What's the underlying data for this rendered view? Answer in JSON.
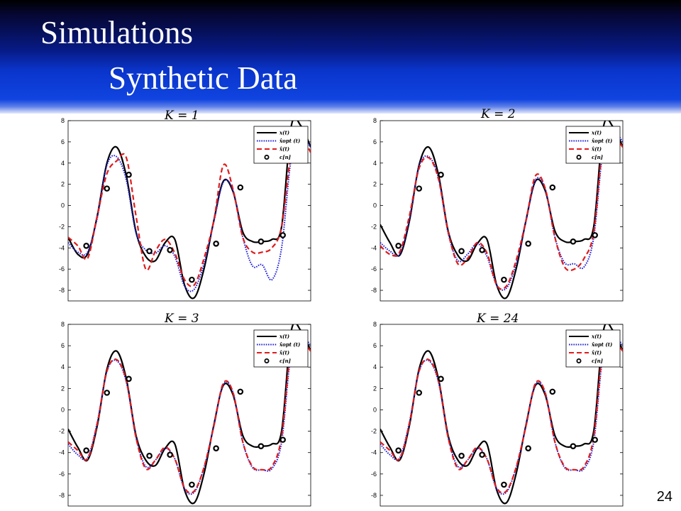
{
  "slide": {
    "title": "Simulations",
    "subtitle": "Synthetic Data",
    "page_number": "24"
  },
  "chart_data": [
    {
      "type": "line",
      "panel_title": "K = 1",
      "ylim": [
        -9,
        8
      ],
      "yticks": [
        "8",
        "6",
        "4",
        "2",
        "0",
        "-2",
        "-4",
        "-6",
        "-8"
      ],
      "grid": false,
      "legend_position": "top-right",
      "legend": [
        "x(t)",
        "x̂opt (t)",
        "x̂(t)",
        "c[n]"
      ],
      "series": [
        {
          "name": "x(t)",
          "color": "#000000",
          "style": "solid",
          "x": [
            0,
            4,
            8,
            12,
            16,
            20,
            24,
            28,
            32,
            36,
            40,
            44,
            48,
            52,
            56,
            60,
            64,
            68,
            72,
            76,
            80,
            84,
            88,
            92,
            96,
            100
          ],
          "values": [
            -3,
            -4.6,
            -4.6,
            -1,
            4,
            5.5,
            2.8,
            -2.5,
            -4.8,
            -5.2,
            -3.5,
            -3.2,
            -7.5,
            -8.7,
            -6,
            -1.5,
            2.3,
            1.3,
            -2.5,
            -3.4,
            -3.4,
            -3.2,
            -2,
            7.5,
            7.5,
            5.5
          ]
        },
        {
          "name": "x̂opt (t)",
          "color": "#1f1fd6",
          "style": "dotted",
          "x": [
            0,
            4,
            8,
            12,
            16,
            20,
            24,
            28,
            32,
            36,
            40,
            44,
            48,
            52,
            56,
            60,
            64,
            68,
            72,
            76,
            80,
            84,
            88,
            92,
            96,
            100
          ],
          "values": [
            -3.5,
            -4.4,
            -4.4,
            -1.2,
            3.8,
            4.6,
            2.4,
            -2.6,
            -4.2,
            -4.5,
            -3.8,
            -4.8,
            -7.6,
            -7.9,
            -5.5,
            -1.6,
            2.2,
            1.4,
            -3,
            -5.7,
            -5.6,
            -7,
            -4,
            4.5,
            6.5,
            5.5
          ]
        },
        {
          "name": "x̂(t)",
          "color": "#e01c1c",
          "style": "dashed",
          "x": [
            0,
            4,
            8,
            12,
            16,
            20,
            24,
            28,
            32,
            36,
            40,
            44,
            48,
            52,
            56,
            60,
            64,
            68,
            72,
            76,
            80,
            84,
            88,
            92,
            96,
            100
          ],
          "values": [
            -3,
            -3.8,
            -5,
            -1,
            3,
            4.2,
            4.5,
            -1,
            -6,
            -4.3,
            -3.2,
            -4.5,
            -7,
            -7.5,
            -5,
            -1.5,
            3.8,
            1.5,
            -3,
            -4.4,
            -4.4,
            -4,
            -2,
            5,
            6.5,
            5
          ]
        },
        {
          "name": "c[n]",
          "color": "#000000",
          "style": "markers",
          "x": [
            7.5,
            16,
            25,
            33.5,
            42,
            51,
            61,
            71,
            79.5,
            88.5
          ],
          "values": [
            -3.8,
            1.6,
            2.9,
            -4.3,
            -4.2,
            -7,
            -3.6,
            1.7,
            -3.4,
            -2.8
          ]
        }
      ]
    },
    {
      "type": "line",
      "panel_title": "K = 2",
      "ylim": [
        -9,
        8
      ],
      "yticks": [
        "8",
        "6",
        "4",
        "2",
        "0",
        "-2",
        "-4",
        "-6",
        "-8"
      ],
      "grid": false,
      "legend_position": "top-right",
      "legend": [
        "x(t)",
        "x̂opt (t)",
        "x̂(t)",
        "c[n]"
      ],
      "series": [
        {
          "name": "x(t)",
          "color": "#000000",
          "style": "solid",
          "x": [
            0,
            4,
            8,
            12,
            16,
            20,
            24,
            28,
            32,
            36,
            40,
            44,
            48,
            52,
            56,
            60,
            64,
            68,
            72,
            76,
            80,
            84,
            88,
            92,
            96,
            100
          ],
          "values": [
            -1.8,
            -3.5,
            -4.7,
            -1.5,
            3.8,
            5.5,
            2.9,
            -2.4,
            -4.7,
            -5.2,
            -3.6,
            -3.2,
            -7.5,
            -8.7,
            -6,
            -1.5,
            2.3,
            1.4,
            -2.4,
            -3.4,
            -3.4,
            -3.2,
            -2,
            7.4,
            7.4,
            5.5
          ]
        },
        {
          "name": "x̂opt (t)",
          "color": "#1f1fd6",
          "style": "dotted",
          "x": [
            0,
            4,
            8,
            12,
            16,
            20,
            24,
            28,
            32,
            36,
            40,
            44,
            48,
            52,
            56,
            60,
            64,
            68,
            72,
            76,
            80,
            84,
            88,
            92,
            96,
            100
          ],
          "values": [
            -3.5,
            -4.3,
            -4.6,
            -1.3,
            3.7,
            4.6,
            2.6,
            -2.6,
            -5.2,
            -4.6,
            -3.6,
            -4.8,
            -7.5,
            -7.8,
            -5.5,
            -1.6,
            2.4,
            1.6,
            -3,
            -5.4,
            -5.5,
            -5.8,
            -3,
            5.5,
            7,
            6
          ]
        },
        {
          "name": "x̂(t)",
          "color": "#e01c1c",
          "style": "dashed",
          "x": [
            0,
            4,
            8,
            12,
            16,
            20,
            24,
            28,
            32,
            36,
            40,
            44,
            48,
            52,
            56,
            60,
            64,
            68,
            72,
            76,
            80,
            84,
            88,
            92,
            96,
            100
          ],
          "values": [
            -3.8,
            -4.6,
            -4.4,
            -1,
            3.5,
            4.5,
            2.5,
            -2.5,
            -5.5,
            -5,
            -3.5,
            -4.5,
            -7.5,
            -7.6,
            -5.2,
            -1.5,
            2.8,
            1.6,
            -3,
            -5.8,
            -6,
            -5,
            -2.5,
            6,
            6.5,
            5.5
          ]
        },
        {
          "name": "c[n]",
          "color": "#000000",
          "style": "markers",
          "x": [
            7.5,
            16,
            25,
            33.5,
            42,
            51,
            61,
            71,
            79.5,
            88.5
          ],
          "values": [
            -3.8,
            1.6,
            2.9,
            -4.3,
            -4.2,
            -7,
            -3.6,
            1.7,
            -3.4,
            -2.8
          ]
        }
      ]
    },
    {
      "type": "line",
      "panel_title": "K = 3",
      "ylim": [
        -9,
        8
      ],
      "yticks": [
        "8",
        "6",
        "4",
        "2",
        "0",
        "-2",
        "-4",
        "-6",
        "-8"
      ],
      "grid": false,
      "legend_position": "top-right",
      "legend": [
        "x(t)",
        "x̂opt (t)",
        "x̂(t)",
        "c[n]"
      ],
      "series": [
        {
          "name": "x(t)",
          "color": "#000000",
          "style": "solid",
          "x": [
            0,
            4,
            8,
            12,
            16,
            20,
            24,
            28,
            32,
            36,
            40,
            44,
            48,
            52,
            56,
            60,
            64,
            68,
            72,
            76,
            80,
            84,
            88,
            92,
            96,
            100
          ],
          "values": [
            -1.8,
            -3.5,
            -4.7,
            -1.5,
            3.8,
            5.5,
            2.9,
            -2.4,
            -4.7,
            -5.2,
            -3.6,
            -3.2,
            -7.5,
            -8.7,
            -6,
            -1.5,
            2.3,
            1.4,
            -2.4,
            -3.4,
            -3.4,
            -3.2,
            -2,
            7.4,
            7.4,
            5.5
          ]
        },
        {
          "name": "x̂opt (t)",
          "color": "#1f1fd6",
          "style": "dotted",
          "x": [
            0,
            4,
            8,
            12,
            16,
            20,
            24,
            28,
            32,
            36,
            40,
            44,
            48,
            52,
            56,
            60,
            64,
            68,
            72,
            76,
            80,
            84,
            88,
            92,
            96,
            100
          ],
          "values": [
            -3.2,
            -4.2,
            -4.5,
            -1.2,
            3.6,
            4.6,
            2.6,
            -2.6,
            -5.3,
            -4.7,
            -3.6,
            -4.6,
            -7.4,
            -7.7,
            -5.4,
            -1.6,
            2.4,
            1.6,
            -3,
            -5.4,
            -5.6,
            -5.5,
            -3,
            5.5,
            7,
            6
          ]
        },
        {
          "name": "x̂(t)",
          "color": "#e01c1c",
          "style": "dashed",
          "x": [
            0,
            4,
            8,
            12,
            16,
            20,
            24,
            28,
            32,
            36,
            40,
            44,
            48,
            52,
            56,
            60,
            64,
            68,
            72,
            76,
            80,
            84,
            88,
            92,
            96,
            100
          ],
          "values": [
            -3,
            -3.8,
            -4.6,
            -1.3,
            3.6,
            4.7,
            2.7,
            -2.6,
            -5.5,
            -4.7,
            -3.5,
            -4.6,
            -7.3,
            -7.6,
            -5.4,
            -1.6,
            2.5,
            1.6,
            -3,
            -5.3,
            -5.6,
            -5.3,
            -2.5,
            6,
            6.5,
            5.5
          ]
        },
        {
          "name": "c[n]",
          "color": "#000000",
          "style": "markers",
          "x": [
            7.5,
            16,
            25,
            33.5,
            42,
            51,
            61,
            71,
            79.5,
            88.5
          ],
          "values": [
            -3.8,
            1.6,
            2.9,
            -4.3,
            -4.2,
            -7,
            -3.6,
            1.7,
            -3.4,
            -2.8
          ]
        }
      ]
    },
    {
      "type": "line",
      "panel_title": "K = 24",
      "ylim": [
        -9,
        8
      ],
      "yticks": [
        "8",
        "6",
        "4",
        "2",
        "0",
        "-2",
        "-4",
        "-6",
        "-8"
      ],
      "grid": false,
      "legend_position": "top-right",
      "legend": [
        "x(t)",
        "x̂opt (t)",
        "x̂(t)",
        "c[n]"
      ],
      "series": [
        {
          "name": "x(t)",
          "color": "#000000",
          "style": "solid",
          "x": [
            0,
            4,
            8,
            12,
            16,
            20,
            24,
            28,
            32,
            36,
            40,
            44,
            48,
            52,
            56,
            60,
            64,
            68,
            72,
            76,
            80,
            84,
            88,
            92,
            96,
            100
          ],
          "values": [
            -1.8,
            -3.5,
            -4.7,
            -1.5,
            3.8,
            5.5,
            2.9,
            -2.4,
            -4.7,
            -5.2,
            -3.6,
            -3.2,
            -7.5,
            -8.7,
            -6,
            -1.5,
            2.3,
            1.4,
            -2.4,
            -3.4,
            -3.4,
            -3.2,
            -2,
            7.4,
            7.4,
            5.5
          ]
        },
        {
          "name": "x̂opt (t)",
          "color": "#1f1fd6",
          "style": "dotted",
          "x": [
            0,
            4,
            8,
            12,
            16,
            20,
            24,
            28,
            32,
            36,
            40,
            44,
            48,
            52,
            56,
            60,
            64,
            68,
            72,
            76,
            80,
            84,
            88,
            92,
            96,
            100
          ],
          "values": [
            -3.2,
            -4.2,
            -4.5,
            -1.2,
            3.6,
            4.6,
            2.6,
            -2.6,
            -5.3,
            -4.7,
            -3.6,
            -4.6,
            -7.4,
            -7.7,
            -5.4,
            -1.6,
            2.4,
            1.6,
            -3,
            -5.4,
            -5.6,
            -5.5,
            -3,
            5.5,
            7,
            6
          ]
        },
        {
          "name": "x̂(t)",
          "color": "#e01c1c",
          "style": "dashed",
          "x": [
            0,
            4,
            8,
            12,
            16,
            20,
            24,
            28,
            32,
            36,
            40,
            44,
            48,
            52,
            56,
            60,
            64,
            68,
            72,
            76,
            80,
            84,
            88,
            92,
            96,
            100
          ],
          "values": [
            -3,
            -3.8,
            -4.6,
            -1.3,
            3.6,
            4.7,
            2.7,
            -2.6,
            -5.5,
            -4.7,
            -3.5,
            -4.6,
            -7.3,
            -7.6,
            -5.4,
            -1.6,
            2.5,
            1.6,
            -3,
            -5.3,
            -5.6,
            -5.3,
            -2.5,
            6,
            6.5,
            5.5
          ]
        },
        {
          "name": "c[n]",
          "color": "#000000",
          "style": "markers",
          "x": [
            7.5,
            16,
            25,
            33.5,
            42,
            51,
            61,
            71,
            79.5,
            88.5
          ],
          "values": [
            -3.8,
            1.6,
            2.9,
            -4.3,
            -4.2,
            -7,
            -3.6,
            1.7,
            -3.4,
            -2.8
          ]
        }
      ]
    }
  ]
}
